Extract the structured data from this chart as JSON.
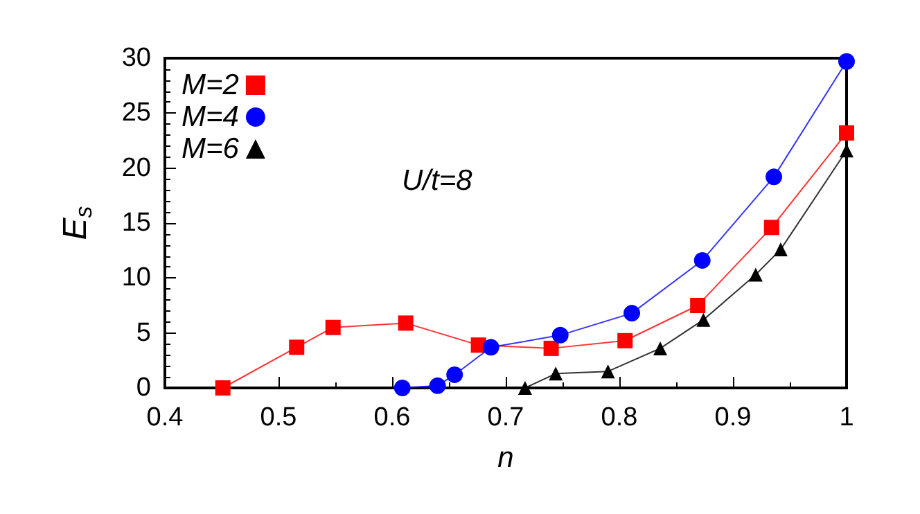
{
  "chart_data": {
    "type": "line",
    "xlabel": "n",
    "ylabel": "E$_{s}$",
    "annotations": [
      "U/t=8"
    ],
    "xlim": [
      0.4,
      1
    ],
    "xticks": [
      0.4,
      0.5,
      0.6,
      0.7,
      0.8,
      0.9,
      1
    ],
    "ylim": [
      0,
      30
    ],
    "yticks": [
      0,
      5,
      10,
      15,
      20,
      25,
      30
    ],
    "grid": false,
    "legend": "top left",
    "series": [
      {
        "name": "M=2",
        "color": "#ff0000",
        "marker": "square",
        "x": [
          0.451,
          0.516,
          0.548,
          0.612,
          0.676,
          0.74,
          0.805,
          0.869,
          0.934,
          1.0
        ],
        "values": [
          0,
          3.7,
          5.5,
          5.9,
          3.9,
          3.6,
          4.3,
          7.5,
          14.6,
          23.2
        ]
      },
      {
        "name": "M=4",
        "color": "#0000ff",
        "marker": "circle",
        "x": [
          0.609,
          0.64,
          0.655,
          0.687,
          0.748,
          0.811,
          0.873,
          0.936,
          1.0
        ],
        "values": [
          0,
          0.2,
          1.2,
          3.7,
          4.8,
          6.8,
          11.6,
          19.2,
          29.7
        ]
      },
      {
        "name": "M=6",
        "color": "#000000",
        "marker": "triangle",
        "x": [
          0.717,
          0.744,
          0.79,
          0.836,
          0.874,
          0.92,
          0.942,
          1.0
        ],
        "values": [
          0,
          1.3,
          1.5,
          3.6,
          6.2,
          10.3,
          12.6,
          21.6
        ]
      }
    ]
  }
}
